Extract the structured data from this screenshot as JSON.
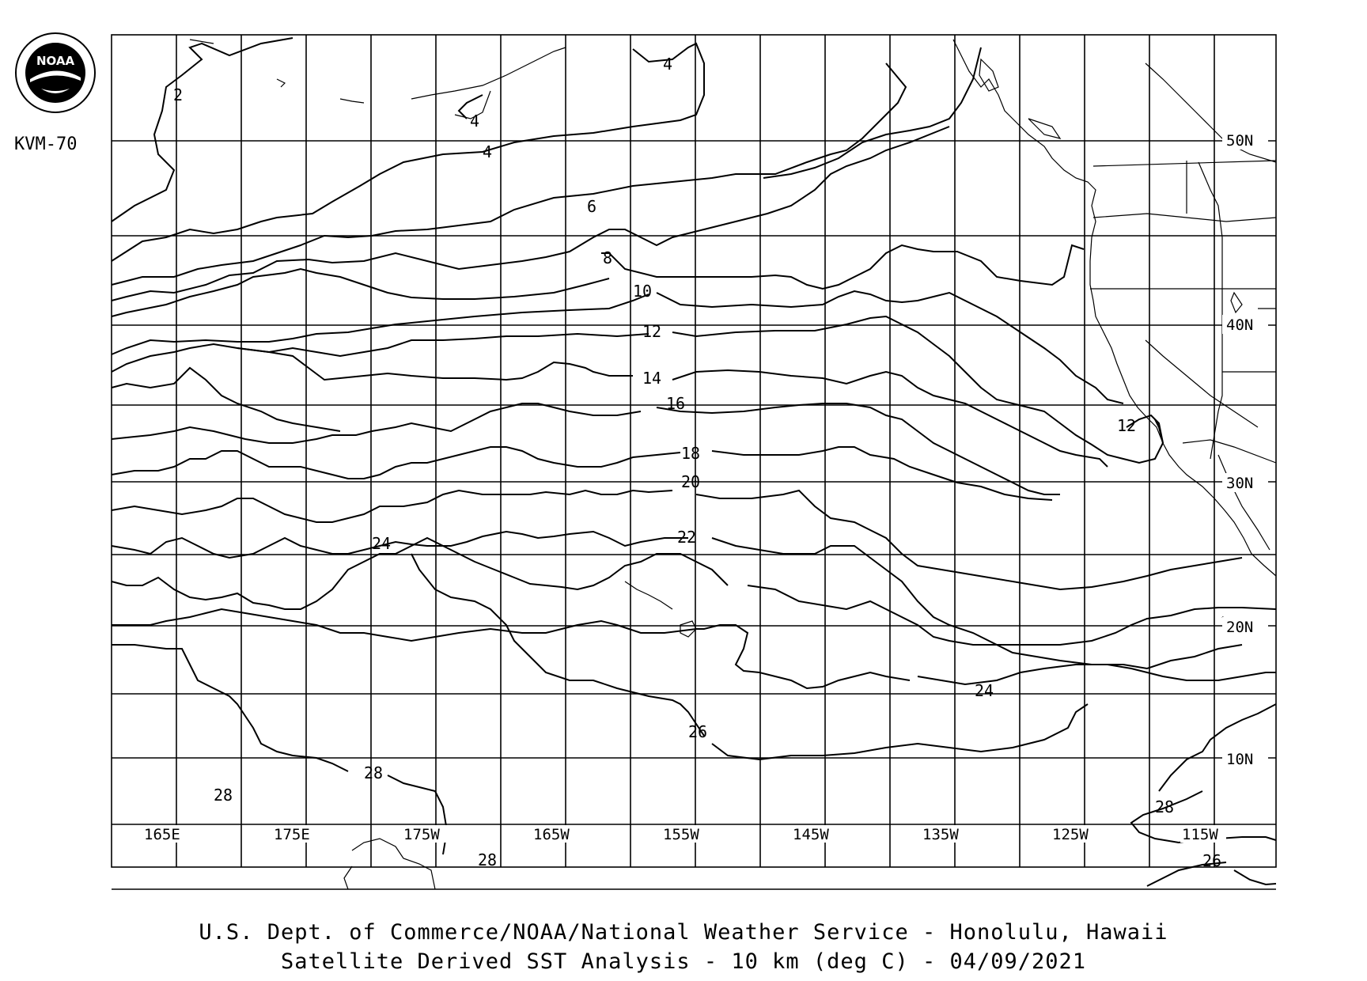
{
  "header": {
    "satellite_id": "KVM-70"
  },
  "logo": {
    "text": "NOAA",
    "icon": "noaa-seal-icon"
  },
  "footer": {
    "line1": "U.S. Dept. of Commerce/NOAA/National Weather Service - Honolulu, Hawaii",
    "line2": "Satellite Derived SST Analysis - 10 km (deg C)  -  04/09/2021"
  },
  "map": {
    "lon_labels": [
      "165E",
      "175E",
      "175W",
      "165W",
      "155W",
      "145W",
      "135W",
      "125W",
      "115W"
    ],
    "lat_labels": [
      "50N",
      "40N",
      "30N",
      "20N",
      "10N"
    ],
    "contour_labels": [
      "2",
      "4",
      "4",
      "4",
      "6",
      "8",
      "10",
      "12",
      "14",
      "16",
      "18",
      "20",
      "22",
      "24",
      "24",
      "26",
      "26",
      "28",
      "28",
      "28",
      "28",
      "12"
    ]
  }
}
